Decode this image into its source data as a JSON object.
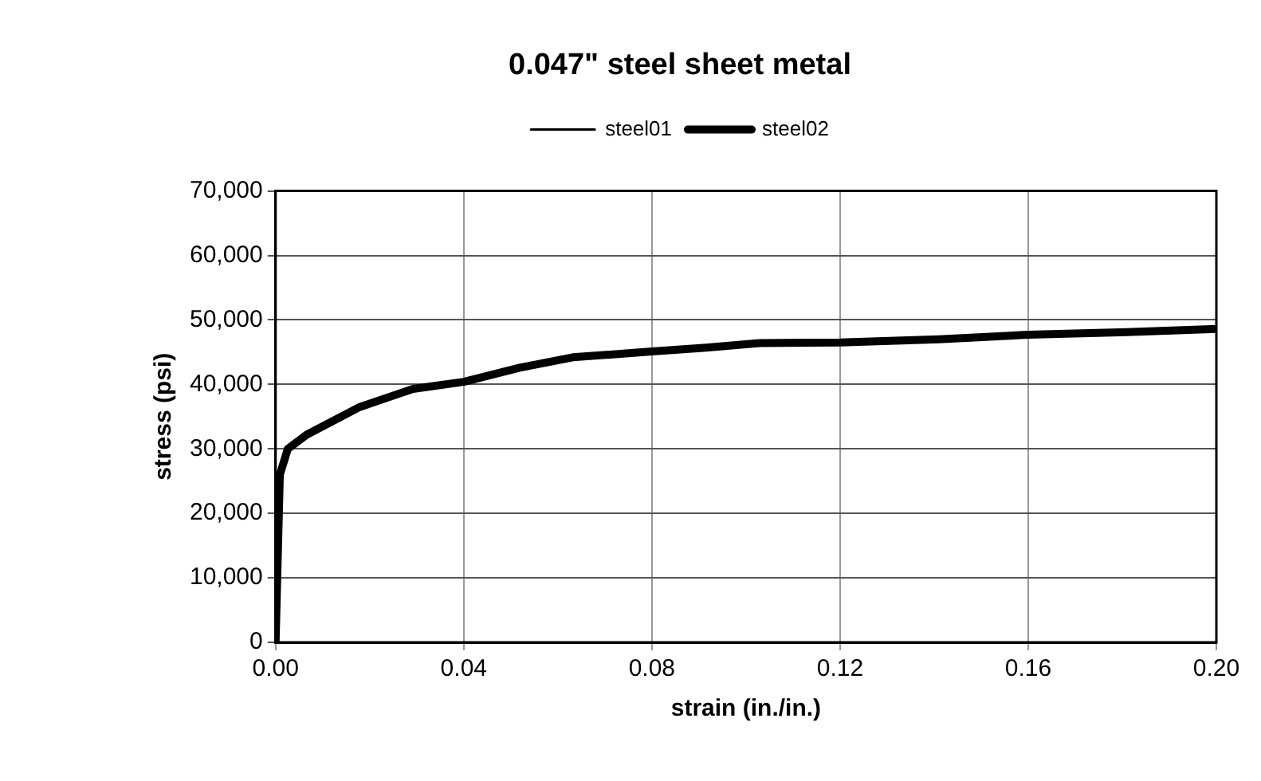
{
  "chart_data": {
    "type": "line",
    "title": "0.047\" steel sheet metal",
    "xlabel": "strain (in./in.)",
    "ylabel": "stress (psi)",
    "xlim": [
      0,
      0.2
    ],
    "xticks": [
      {
        "value": 0,
        "label": "0.00"
      },
      0.04,
      0.08,
      0.12,
      0.16,
      {
        "value": 0.2,
        "label": "0.20"
      }
    ],
    "ylim": [
      0,
      70000
    ],
    "yticks": [
      {
        "value": 0,
        "label": "0"
      },
      {
        "value": 10000,
        "label": "10,000"
      },
      {
        "value": 20000,
        "label": "20,000"
      },
      {
        "value": 30000,
        "label": "30,000"
      },
      {
        "value": 40000,
        "label": "40,000"
      },
      {
        "value": 50000,
        "label": "50,000"
      },
      {
        "value": 60000,
        "label": "60,000"
      },
      {
        "value": 70000,
        "label": "70,000"
      }
    ],
    "grid": true,
    "legend": "top",
    "marker": "none",
    "x": [
      0,
      0.0009,
      0.0026,
      0.0066,
      0.0179,
      0.0292,
      0.04,
      0.0519,
      0.0632,
      0.08,
      0.0915,
      0.1029,
      0.12,
      0.141,
      0.16,
      0.181,
      0.2
    ],
    "series": [
      {
        "name": "steel01",
        "color": "#000000",
        "values": [
          null,
          null,
          null,
          null,
          null,
          null,
          null,
          null,
          null,
          null,
          null,
          null,
          null,
          null,
          null,
          null,
          null
        ]
      },
      {
        "name": "steel02",
        "color": "#000000",
        "values": [
          0,
          26000,
          30000,
          32200,
          36500,
          39300,
          40400,
          42600,
          44200,
          45100,
          45700,
          46400,
          46500,
          47000,
          47700,
          48100,
          48600
        ]
      }
    ]
  }
}
